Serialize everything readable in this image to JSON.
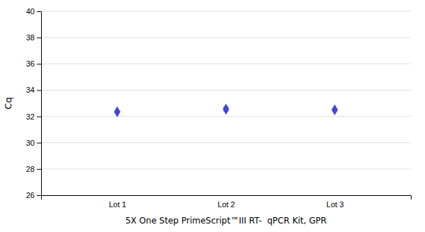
{
  "chart_data": {
    "type": "scatter",
    "categories": [
      "Lot 1",
      "Lot 2",
      "Lot 3"
    ],
    "values": [
      32.35,
      32.55,
      32.5
    ],
    "errors": [
      0.0,
      0.18,
      0.0
    ],
    "color": "#4444DD",
    "marker": "diamond",
    "xlabel": "5X One Step PrimeScript™III RT-  qPCR Kit, GPR",
    "ylabel": "Cq",
    "ylim": [
      26,
      40
    ],
    "yticks": [
      26,
      28,
      30,
      32,
      34,
      36,
      38,
      40
    ],
    "grid": true
  }
}
